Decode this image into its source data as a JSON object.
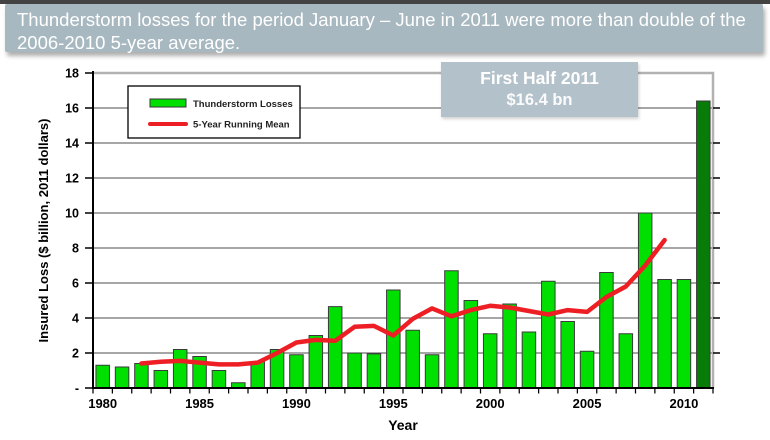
{
  "slide": {
    "title": "Thunderstorm losses for the period January – June in 2011 were more than double of the 2006-2010 5-year average."
  },
  "annotation": {
    "line1": "First Half 2011",
    "line2": "$16.4 bn"
  },
  "colors": {
    "header_bg": "#a8b8c0",
    "annotation_bg": "#b3c1ca",
    "bar_fill": "#00e000",
    "bar_2011_fill": "#077c07",
    "bar_stroke": "#3a3a3a",
    "line_color": "#ed1f24",
    "grid_color": "#4d4d4d",
    "axis_color": "#000000",
    "plot_border_gray": "#b2b2b2",
    "legend_text": "#222222"
  },
  "chart_data": {
    "type": "bar",
    "title": "",
    "xlabel": "Year",
    "ylabel": "Insured Loss ($ billion, 2011 dollars)",
    "ylim": [
      0,
      18
    ],
    "ytick_step": 2,
    "ytick_zero_label": "-",
    "xticks": [
      1980,
      1985,
      1990,
      1995,
      2000,
      2005,
      2010
    ],
    "grid": true,
    "legend_position": "top-left",
    "categories": [
      1980,
      1981,
      1982,
      1983,
      1984,
      1985,
      1986,
      1987,
      1988,
      1989,
      1990,
      1991,
      1992,
      1993,
      1994,
      1995,
      1996,
      1997,
      1998,
      1999,
      2000,
      2001,
      2002,
      2003,
      2004,
      2005,
      2006,
      2007,
      2008,
      2009,
      2010,
      2011
    ],
    "series": [
      {
        "name": "Thunderstorm Losses",
        "type": "bar",
        "values": [
          1.3,
          1.2,
          1.4,
          1.0,
          2.2,
          1.8,
          1.0,
          0.3,
          1.5,
          2.2,
          1.9,
          3.0,
          4.65,
          2.0,
          1.95,
          5.6,
          3.3,
          1.9,
          6.7,
          5.0,
          3.1,
          4.8,
          3.2,
          6.1,
          3.8,
          2.1,
          6.6,
          3.1,
          10.0,
          6.2,
          6.2,
          16.4
        ]
      },
      {
        "name": "5-Year Running Mean",
        "type": "line",
        "x": [
          1982,
          1983,
          1984,
          1985,
          1986,
          1987,
          1988,
          1989,
          1990,
          1991,
          1992,
          1993,
          1994,
          1995,
          1996,
          1997,
          1998,
          1999,
          2000,
          2001,
          2002,
          2003,
          2004,
          2005,
          2006,
          2007,
          2008,
          2009
        ],
        "values": [
          1.4,
          1.5,
          1.55,
          1.45,
          1.35,
          1.35,
          1.45,
          2.0,
          2.6,
          2.75,
          2.7,
          3.5,
          3.55,
          3.0,
          3.95,
          4.55,
          4.1,
          4.45,
          4.7,
          4.6,
          4.4,
          4.2,
          4.45,
          4.35,
          5.2,
          5.8,
          7.0,
          8.45
        ]
      }
    ],
    "highlight_category": 2011
  }
}
